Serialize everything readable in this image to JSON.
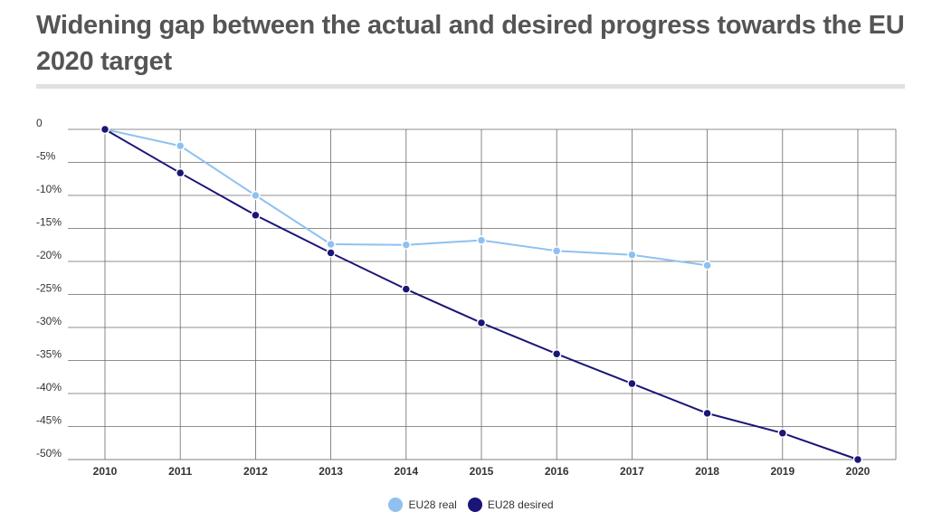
{
  "chart_data": {
    "type": "line",
    "title": "Widening gap between the actual and desired progress towards the EU 2020 target",
    "x": [
      "2010",
      "2011",
      "2012",
      "2013",
      "2014",
      "2015",
      "2016",
      "2017",
      "2018",
      "2019",
      "2020"
    ],
    "ylim": [
      -50,
      0
    ],
    "yticks": [
      0,
      -5,
      -10,
      -15,
      -20,
      -25,
      -30,
      -35,
      -40,
      -45,
      -50
    ],
    "ytick_labels": [
      "0",
      "-5%",
      "-10%",
      "-15%",
      "-20%",
      "-25%",
      "-30%",
      "-35%",
      "-40%",
      "-45%",
      "-50%"
    ],
    "grid": true,
    "legend_position": "bottom-center",
    "series": [
      {
        "name": "EU28 real",
        "color": "#8fc1f0",
        "values": [
          0,
          -2.5,
          -10,
          -17.4,
          -17.5,
          -16.8,
          -18.4,
          -19,
          -20.6,
          null,
          null
        ]
      },
      {
        "name": "EU28 desired",
        "color": "#1b1577",
        "values": [
          0,
          -6.6,
          -13,
          -18.7,
          -24.2,
          -29.3,
          -34,
          -38.5,
          -43,
          -46,
          -50
        ]
      }
    ]
  }
}
